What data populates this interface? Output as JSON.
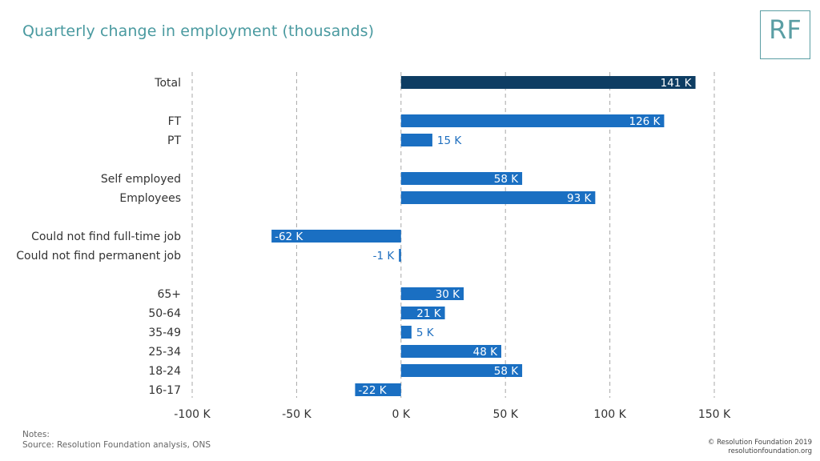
{
  "title": "Quarterly change in employment (thousands)",
  "logo_text": "RF",
  "notes_label": "Notes:",
  "source": "Source: Resolution Foundation analysis, ONS",
  "copyright": "© Resolution Foundation 2019",
  "website": "resolutionfoundation.org",
  "colors": {
    "total_bar": "#0e3d63",
    "bar": "#1a6fc2",
    "grid": "#a8a8a8",
    "title": "#4a9aa0"
  },
  "chart_data": {
    "type": "bar",
    "orientation": "horizontal",
    "categories": [
      "Total",
      "FT",
      "PT",
      "Self employed",
      "Employees",
      "Could not find full-time job",
      "Could not find permanent job",
      "65+",
      "50-64",
      "35-49",
      "25-34",
      "18-24",
      "16-17"
    ],
    "values": [
      141,
      126,
      15,
      58,
      93,
      -62,
      -1,
      30,
      21,
      5,
      48,
      58,
      -22
    ],
    "data_labels": [
      "141 K",
      "126 K",
      "15 K",
      "58 K",
      "93 K",
      "-62 K",
      "-1 K",
      "30 K",
      "21 K",
      "5 K",
      "48 K",
      "58 K",
      "-22 K"
    ],
    "xlim": [
      -100,
      150
    ],
    "x_ticks": [
      -100,
      -50,
      0,
      50,
      100,
      150
    ],
    "x_tick_labels": [
      "-100 K",
      "-50 K",
      "0 K",
      "50 K",
      "100 K",
      "150 K"
    ],
    "grid": "vertical dashed",
    "legend": "none"
  }
}
